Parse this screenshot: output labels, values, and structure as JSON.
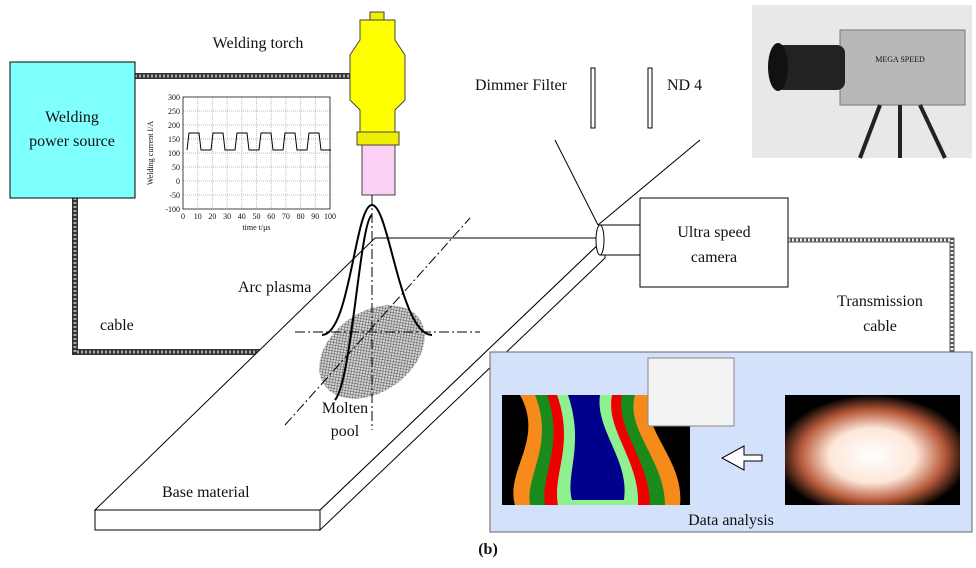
{
  "labels": {
    "welding_torch": "Welding torch",
    "power_source": [
      "Welding",
      "power source"
    ],
    "dimmer_filter": "Dimmer Filter",
    "nd": "ND 4",
    "camera": [
      "Ultra speed",
      "camera"
    ],
    "arc_plasma": "Arc plasma",
    "cable": "cable",
    "transmission_cable": [
      "Transmission",
      "cable"
    ],
    "molten_pool": [
      "Molten",
      "pool"
    ],
    "base_material": "Base material",
    "data_analysis": "Data analysis",
    "panel": "(b)",
    "camera_brand": "MEGA SPEED"
  },
  "inset_chart": {
    "y_axis_label": "Welding current  I/A",
    "x_axis_label": "time  t/μs",
    "ylim": [
      -100,
      300
    ],
    "yticks": [
      300,
      250,
      200,
      150,
      100,
      50,
      0,
      -50,
      -100
    ],
    "xlim": [
      0,
      100
    ],
    "xticks": [
      0,
      10,
      20,
      30,
      40,
      50,
      60,
      70,
      80,
      90,
      100
    ]
  }
}
